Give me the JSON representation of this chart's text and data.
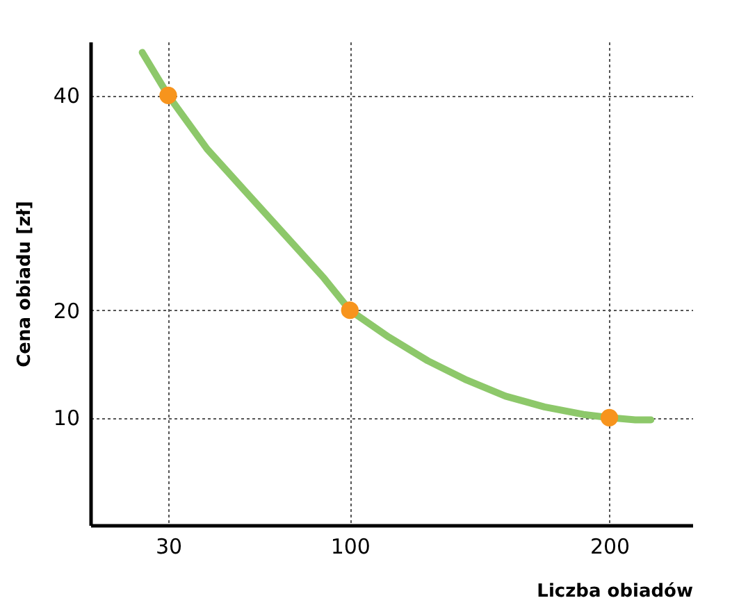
{
  "chart_data": {
    "type": "line",
    "xlabel": "Liczba obiadów",
    "ylabel": "Cena obiadu [zł]",
    "xlim": [
      0,
      232
    ],
    "ylim": [
      0,
      45
    ],
    "xticks": [
      30,
      100,
      200
    ],
    "yticks": [
      10,
      20,
      40
    ],
    "grid": true,
    "series": [
      {
        "color": "#8dc86a",
        "x": [
          20,
          30,
          45,
          60,
          75,
          90,
          100,
          115,
          130,
          145,
          160,
          175,
          190,
          200,
          210,
          216
        ],
        "values": [
          44,
          40,
          35,
          31,
          27,
          23,
          20,
          17.5,
          15.3,
          13.5,
          12,
          11,
          10.3,
          10,
          9.8,
          9.8
        ],
        "marker": "none"
      },
      {
        "type": "scatter",
        "color": "#f7941d",
        "x": [
          30,
          100,
          200
        ],
        "values": [
          40,
          20,
          10
        ],
        "marker": "circle"
      }
    ]
  }
}
